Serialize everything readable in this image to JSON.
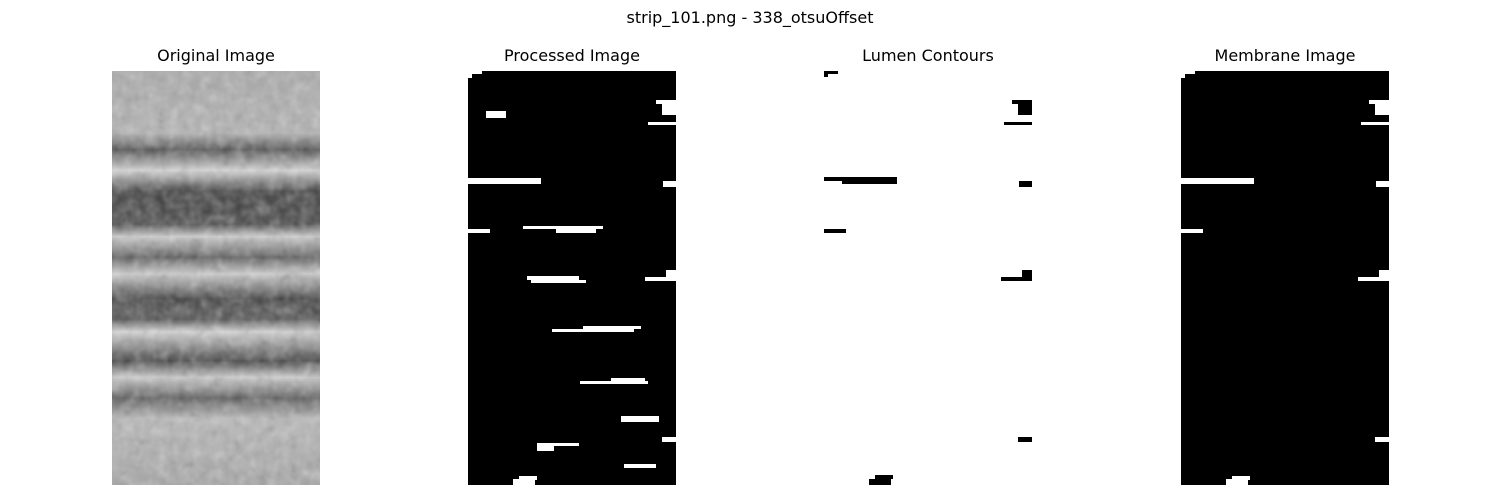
{
  "figure": {
    "suptitle": "strip_101.png - 338_otsuOffset"
  },
  "panels": [
    {
      "title": "Original Image"
    },
    {
      "title": "Processed Image"
    },
    {
      "title": "Lumen Contours"
    },
    {
      "title": "Membrane Image"
    }
  ],
  "colors": {
    "black": "#000000",
    "white": "#ffffff"
  }
}
